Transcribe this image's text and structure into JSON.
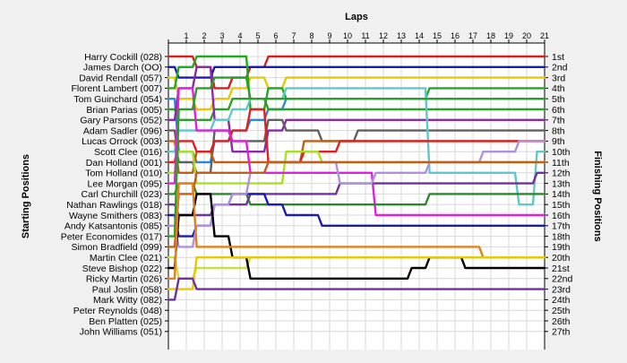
{
  "chart_data": {
    "type": "line",
    "title": "Laps",
    "ylabel_left": "Starting Positions",
    "ylabel_right": "Finishing Positions",
    "x": [
      0,
      1,
      2,
      3,
      4,
      5,
      6,
      7,
      8,
      9,
      10,
      11,
      12,
      13,
      14,
      15,
      16,
      17,
      18,
      19,
      20,
      21
    ],
    "xtick_labels": [
      "1",
      "2",
      "3",
      "4",
      "5",
      "6",
      "7",
      "8",
      "9",
      "10",
      "11",
      "12",
      "13",
      "14",
      "15",
      "16",
      "17",
      "18",
      "19",
      "20",
      "21"
    ],
    "finishing_labels": [
      "1st",
      "2nd",
      "3rd",
      "4th",
      "5th",
      "6th",
      "7th",
      "8th",
      "9th",
      "10th",
      "11th",
      "12th",
      "13th",
      "14th",
      "15th",
      "16th",
      "17th",
      "18th",
      "19th",
      "20th",
      "21st",
      "22nd",
      "23rd",
      "24th",
      "25th",
      "26th",
      "27th"
    ],
    "grid": true,
    "series": [
      {
        "name": "Harry Cockill (028)",
        "color": "#d42020",
        "positions": [
          1,
          1,
          2,
          4,
          3,
          2,
          1,
          1,
          1,
          1,
          1,
          1,
          1,
          1,
          1,
          1,
          1,
          1,
          1,
          1,
          1,
          1
        ]
      },
      {
        "name": "James Darch (OO)",
        "color": "#1a1ab4",
        "positions": [
          2,
          3,
          3,
          2,
          2,
          2,
          2,
          2,
          2,
          2,
          2,
          2,
          2,
          2,
          2,
          2,
          2,
          2,
          2,
          2,
          2,
          2
        ]
      },
      {
        "name": "David Rendall (057)",
        "color": "#e8c800",
        "positions": [
          3,
          5,
          6,
          5,
          4,
          3,
          4,
          3,
          3,
          3,
          3,
          3,
          3,
          3,
          3,
          3,
          3,
          3,
          3,
          3,
          3,
          3
        ]
      },
      {
        "name": "Florent Lambert (007)",
        "color": "#1faa1f",
        "positions": [
          4,
          2,
          1,
          1,
          1,
          6,
          4,
          5,
          5,
          5,
          5,
          5,
          5,
          5,
          5,
          4,
          4,
          4,
          4,
          4,
          4,
          4
        ]
      },
      {
        "name": "Tom Guinchard (054)",
        "color": "#2a8ae0",
        "positions": [
          5,
          10,
          11,
          9,
          8,
          7,
          6,
          5,
          5,
          5,
          5,
          5,
          5,
          5,
          5,
          5,
          5,
          5,
          5,
          5,
          5,
          5
        ]
      },
      {
        "name": "Brian Parias (005)",
        "color": "#2aa02a",
        "positions": [
          6,
          7,
          7,
          6,
          5,
          5,
          6,
          6,
          6,
          6,
          6,
          6,
          6,
          6,
          6,
          6,
          6,
          6,
          6,
          6,
          6,
          6
        ]
      },
      {
        "name": "Gary Parsons (052)",
        "color": "#8a2aa8",
        "positions": [
          7,
          4,
          2,
          7,
          10,
          10,
          8,
          7,
          7,
          7,
          7,
          7,
          7,
          7,
          7,
          7,
          7,
          7,
          7,
          7,
          7,
          7
        ]
      },
      {
        "name": "Adam Sadler (096)",
        "color": "#606060",
        "positions": [
          8,
          11,
          12,
          8,
          9,
          9,
          7,
          8,
          8,
          9,
          9,
          8,
          8,
          8,
          8,
          8,
          8,
          8,
          8,
          8,
          8,
          8
        ]
      },
      {
        "name": "Lucas Orrock (003)",
        "color": "#c06018",
        "positions": [
          9,
          12,
          10,
          11,
          11,
          11,
          11,
          11,
          9,
          9,
          9,
          9,
          9,
          9,
          9,
          9,
          9,
          9,
          9,
          9,
          9,
          9
        ]
      },
      {
        "name": "Scott Clee (016)",
        "color": "#60c8c8",
        "positions": [
          10,
          8,
          8,
          7,
          6,
          5,
          5,
          4,
          4,
          4,
          4,
          4,
          4,
          4,
          4,
          12,
          12,
          12,
          12,
          12,
          15,
          10
        ]
      },
      {
        "name": "Dan Holland (001)",
        "color": "#e02020",
        "positions": [
          11,
          9,
          10,
          9,
          8,
          6,
          11,
          11,
          10,
          10,
          9,
          9,
          9,
          9,
          9,
          9,
          9,
          9,
          9,
          9,
          9,
          9
        ]
      },
      {
        "name": "Tom Holland (010)",
        "color": "#a8e020",
        "positions": [
          12,
          10,
          13,
          13,
          13,
          13,
          13,
          10,
          10,
          11,
          11,
          11,
          11,
          11,
          11,
          11,
          11,
          11,
          11,
          11,
          11,
          11
        ]
      },
      {
        "name": "Lee Morgan (095)",
        "color": "#e020e0",
        "positions": [
          13,
          4,
          8,
          8,
          9,
          12,
          12,
          12,
          12,
          12,
          12,
          12,
          16,
          16,
          16,
          16,
          16,
          16,
          16,
          16,
          16,
          16
        ]
      },
      {
        "name": "Carl Churchill (023)",
        "color": "#2a8a2a",
        "positions": [
          14,
          13,
          14,
          14,
          14,
          15,
          15,
          15,
          15,
          15,
          15,
          15,
          15,
          15,
          15,
          14,
          14,
          14,
          14,
          14,
          14,
          14
        ]
      },
      {
        "name": "Nathan Rawlings (018)",
        "color": "#7030a0",
        "positions": [
          15,
          16,
          16,
          15,
          15,
          14,
          14,
          14,
          14,
          14,
          13,
          13,
          13,
          13,
          13,
          13,
          13,
          13,
          13,
          13,
          13,
          12
        ]
      },
      {
        "name": "Wayne Smithers (083)",
        "color": "#1a1ab4",
        "positions": [
          16,
          18,
          17,
          15,
          14,
          14,
          15,
          16,
          16,
          17,
          17,
          17,
          17,
          17,
          17,
          17,
          17,
          17,
          17,
          17,
          17,
          17
        ]
      },
      {
        "name": "Andy Katsantonis (085)",
        "color": "#b090e0",
        "positions": [
          17,
          19,
          17,
          15,
          14,
          12,
          11,
          11,
          11,
          11,
          13,
          13,
          12,
          12,
          12,
          11,
          11,
          11,
          10,
          10,
          9,
          9
        ]
      },
      {
        "name": "Peter Economides (017)",
        "color": "#2aa02a",
        "positions": [
          18,
          6,
          4,
          3,
          3,
          5,
          5,
          5,
          5,
          5,
          5,
          5,
          5,
          5,
          5,
          5,
          5,
          5,
          5,
          5,
          5,
          5
        ]
      },
      {
        "name": "Simon Bradfield (099)",
        "color": "#c06018",
        "positions": [
          19,
          14,
          12,
          12,
          12,
          12,
          11,
          11,
          11,
          11,
          11,
          11,
          11,
          11,
          11,
          11,
          11,
          11,
          11,
          11,
          11,
          11
        ]
      },
      {
        "name": "Martin Clee (021)",
        "color": "#c8e040",
        "positions": [
          20,
          22,
          21,
          21,
          21,
          20,
          20,
          20,
          20,
          20,
          20,
          20,
          20,
          20,
          20,
          20,
          20,
          20,
          20,
          20,
          20,
          20
        ]
      },
      {
        "name": "Steve Bishop (022)",
        "color": "#000000",
        "positions": [
          21,
          16,
          14,
          18,
          20,
          22,
          22,
          22,
          22,
          22,
          22,
          22,
          22,
          22,
          21,
          20,
          20,
          21,
          21,
          21,
          21,
          21
        ]
      },
      {
        "name": "Ricky Martin (026)",
        "color": "#e08020",
        "positions": [
          22,
          13,
          19,
          19,
          19,
          19,
          19,
          19,
          19,
          19,
          19,
          19,
          19,
          19,
          19,
          19,
          19,
          19,
          20,
          20,
          20,
          20
        ]
      },
      {
        "name": "Paul Joslin (058)",
        "color": "#e8c800",
        "positions": [
          23,
          23,
          20,
          20,
          20,
          20,
          20,
          20,
          20,
          20,
          20,
          20,
          20,
          20,
          20,
          20,
          20,
          20,
          20,
          20,
          20,
          20
        ]
      },
      {
        "name": "Mark Witty (082)",
        "color": "#7030a0",
        "positions": [
          24,
          22,
          23,
          23,
          23,
          23,
          23,
          23,
          23,
          23,
          23,
          23,
          23,
          23,
          23,
          23,
          23,
          23,
          23,
          23,
          23,
          23
        ]
      }
    ]
  },
  "left_labels": [
    "Harry Cockill (028)",
    "James Darch (OO)",
    "David Rendall (057)",
    "Florent Lambert (007)",
    "Tom Guinchard (054)",
    "Brian Parias (005)",
    "Gary Parsons (052)",
    "Adam Sadler (096)",
    "Lucas Orrock (003)",
    "Scott Clee (016)",
    "Dan Holland (001)",
    "Tom Holland (010)",
    "Lee Morgan (095)",
    "Carl Churchill (023)",
    "Nathan Rawlings (018)",
    "Wayne Smithers (083)",
    "Andy Katsantonis (085)",
    "Peter Economides (017)",
    "Simon Bradfield (099)",
    "Martin Clee (021)",
    "Steve Bishop (022)",
    "Ricky Martin (026)",
    "Paul Joslin (058)",
    "Mark Witty (082)",
    "Peter Reynolds (048)",
    "Ben Platten (025)",
    "John Williams (051)"
  ]
}
